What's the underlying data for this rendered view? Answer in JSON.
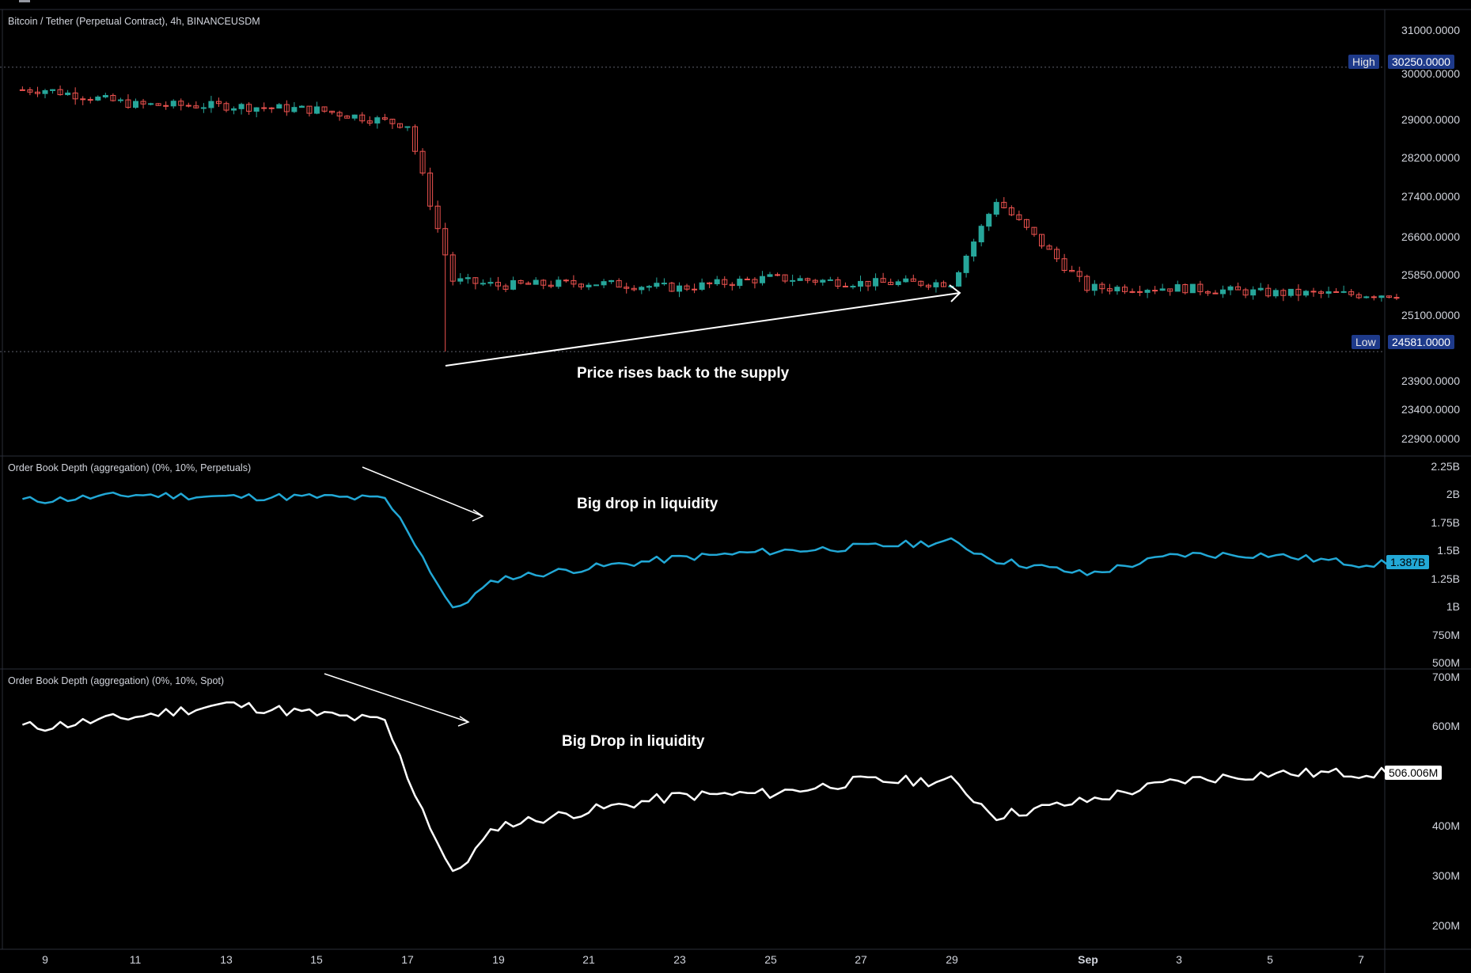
{
  "chart_data": [
    {
      "type": "candlestick",
      "title": "Bitcoin / Tether (Perpetual Contract), 4h, BINANCEUSDM",
      "ylim": [
        22500,
        31400
      ],
      "ticks": [
        "31000.0000",
        "30000.0000",
        "29000.0000",
        "28200.0000",
        "27400.0000",
        "26600.0000",
        "25850.0000",
        "25100.0000",
        "23900.0000",
        "23400.0000",
        "22900.0000"
      ],
      "high_label": "High",
      "high_value": "30250.0000",
      "low_label": "Low",
      "low_value": "24581.0000",
      "annotation": "Price rises back to the supply",
      "x": [
        "Aug 9",
        "Aug 11",
        "Aug 13",
        "Aug 15",
        "Aug 17",
        "Aug 18",
        "Aug 19",
        "Aug 21",
        "Aug 23",
        "Aug 25",
        "Aug 27",
        "Aug 29",
        "Aug 30",
        "Sep 1",
        "Sep 3",
        "Sep 5",
        "Sep 7"
      ],
      "close": [
        29800,
        29500,
        29480,
        29400,
        29100,
        26000,
        25900,
        25950,
        25850,
        26050,
        25950,
        25950,
        27600,
        25850,
        25850,
        25750,
        25720
      ]
    },
    {
      "type": "line",
      "title": "Order Book Depth (aggregation) (0%, 10%, Perpetuals)",
      "ylim": [
        480000000,
        2280000000
      ],
      "ticks": [
        "2.25B",
        "2B",
        "1.75B",
        "1.5B",
        "1.25B",
        "1B",
        "750M",
        "500M"
      ],
      "last_value_label": "1.387B",
      "annotation": "Big drop in liquidity",
      "x": [
        "Aug 9",
        "Aug 11",
        "Aug 13",
        "Aug 15",
        "Aug 16.5",
        "Aug 17",
        "Aug 18",
        "Aug 19",
        "Aug 21",
        "Aug 23",
        "Aug 25",
        "Aug 27",
        "Aug 29",
        "Aug 30",
        "Sep 1",
        "Sep 3",
        "Sep 5",
        "Sep 7"
      ],
      "values": [
        1970000000,
        2020000000,
        2000000000,
        2000000000,
        1980000000,
        1700000000,
        960000000,
        1250000000,
        1350000000,
        1440000000,
        1500000000,
        1540000000,
        1590000000,
        1420000000,
        1290000000,
        1470000000,
        1470000000,
        1387000000
      ]
    },
    {
      "type": "line",
      "title": "Order Book Depth (aggregation) (0%, 10%, Spot)",
      "ylim": [
        160000000,
        700000000
      ],
      "ticks": [
        "700M",
        "600M",
        "400M",
        "300M",
        "200M"
      ],
      "last_value_label": "506.006M",
      "annotation": "Big Drop in liquidity",
      "x_ticks": [
        "9",
        "11",
        "13",
        "15",
        "17",
        "19",
        "21",
        "23",
        "25",
        "27",
        "29",
        "Sep",
        "3",
        "5",
        "7"
      ],
      "x": [
        "Aug 9",
        "Aug 11",
        "Aug 13",
        "Aug 15",
        "Aug 16.5",
        "Aug 17",
        "Aug 18",
        "Aug 19",
        "Aug 21",
        "Aug 23",
        "Aug 25",
        "Aug 27",
        "Aug 29",
        "Aug 30",
        "Sep 1",
        "Sep 3",
        "Sep 5",
        "Sep 7"
      ],
      "values": [
        600000000,
        620000000,
        645000000,
        625000000,
        610000000,
        500000000,
        300000000,
        400000000,
        430000000,
        460000000,
        465000000,
        490000000,
        490000000,
        420000000,
        450000000,
        490000000,
        505000000,
        506006000
      ]
    }
  ],
  "colors": {
    "up": "#26a69a",
    "down": "#ef5350",
    "perp_line": "#22a8d6",
    "spot_line": "#ffffff",
    "tag_blue": "#1e3a8a",
    "grid": "#1e222d"
  }
}
